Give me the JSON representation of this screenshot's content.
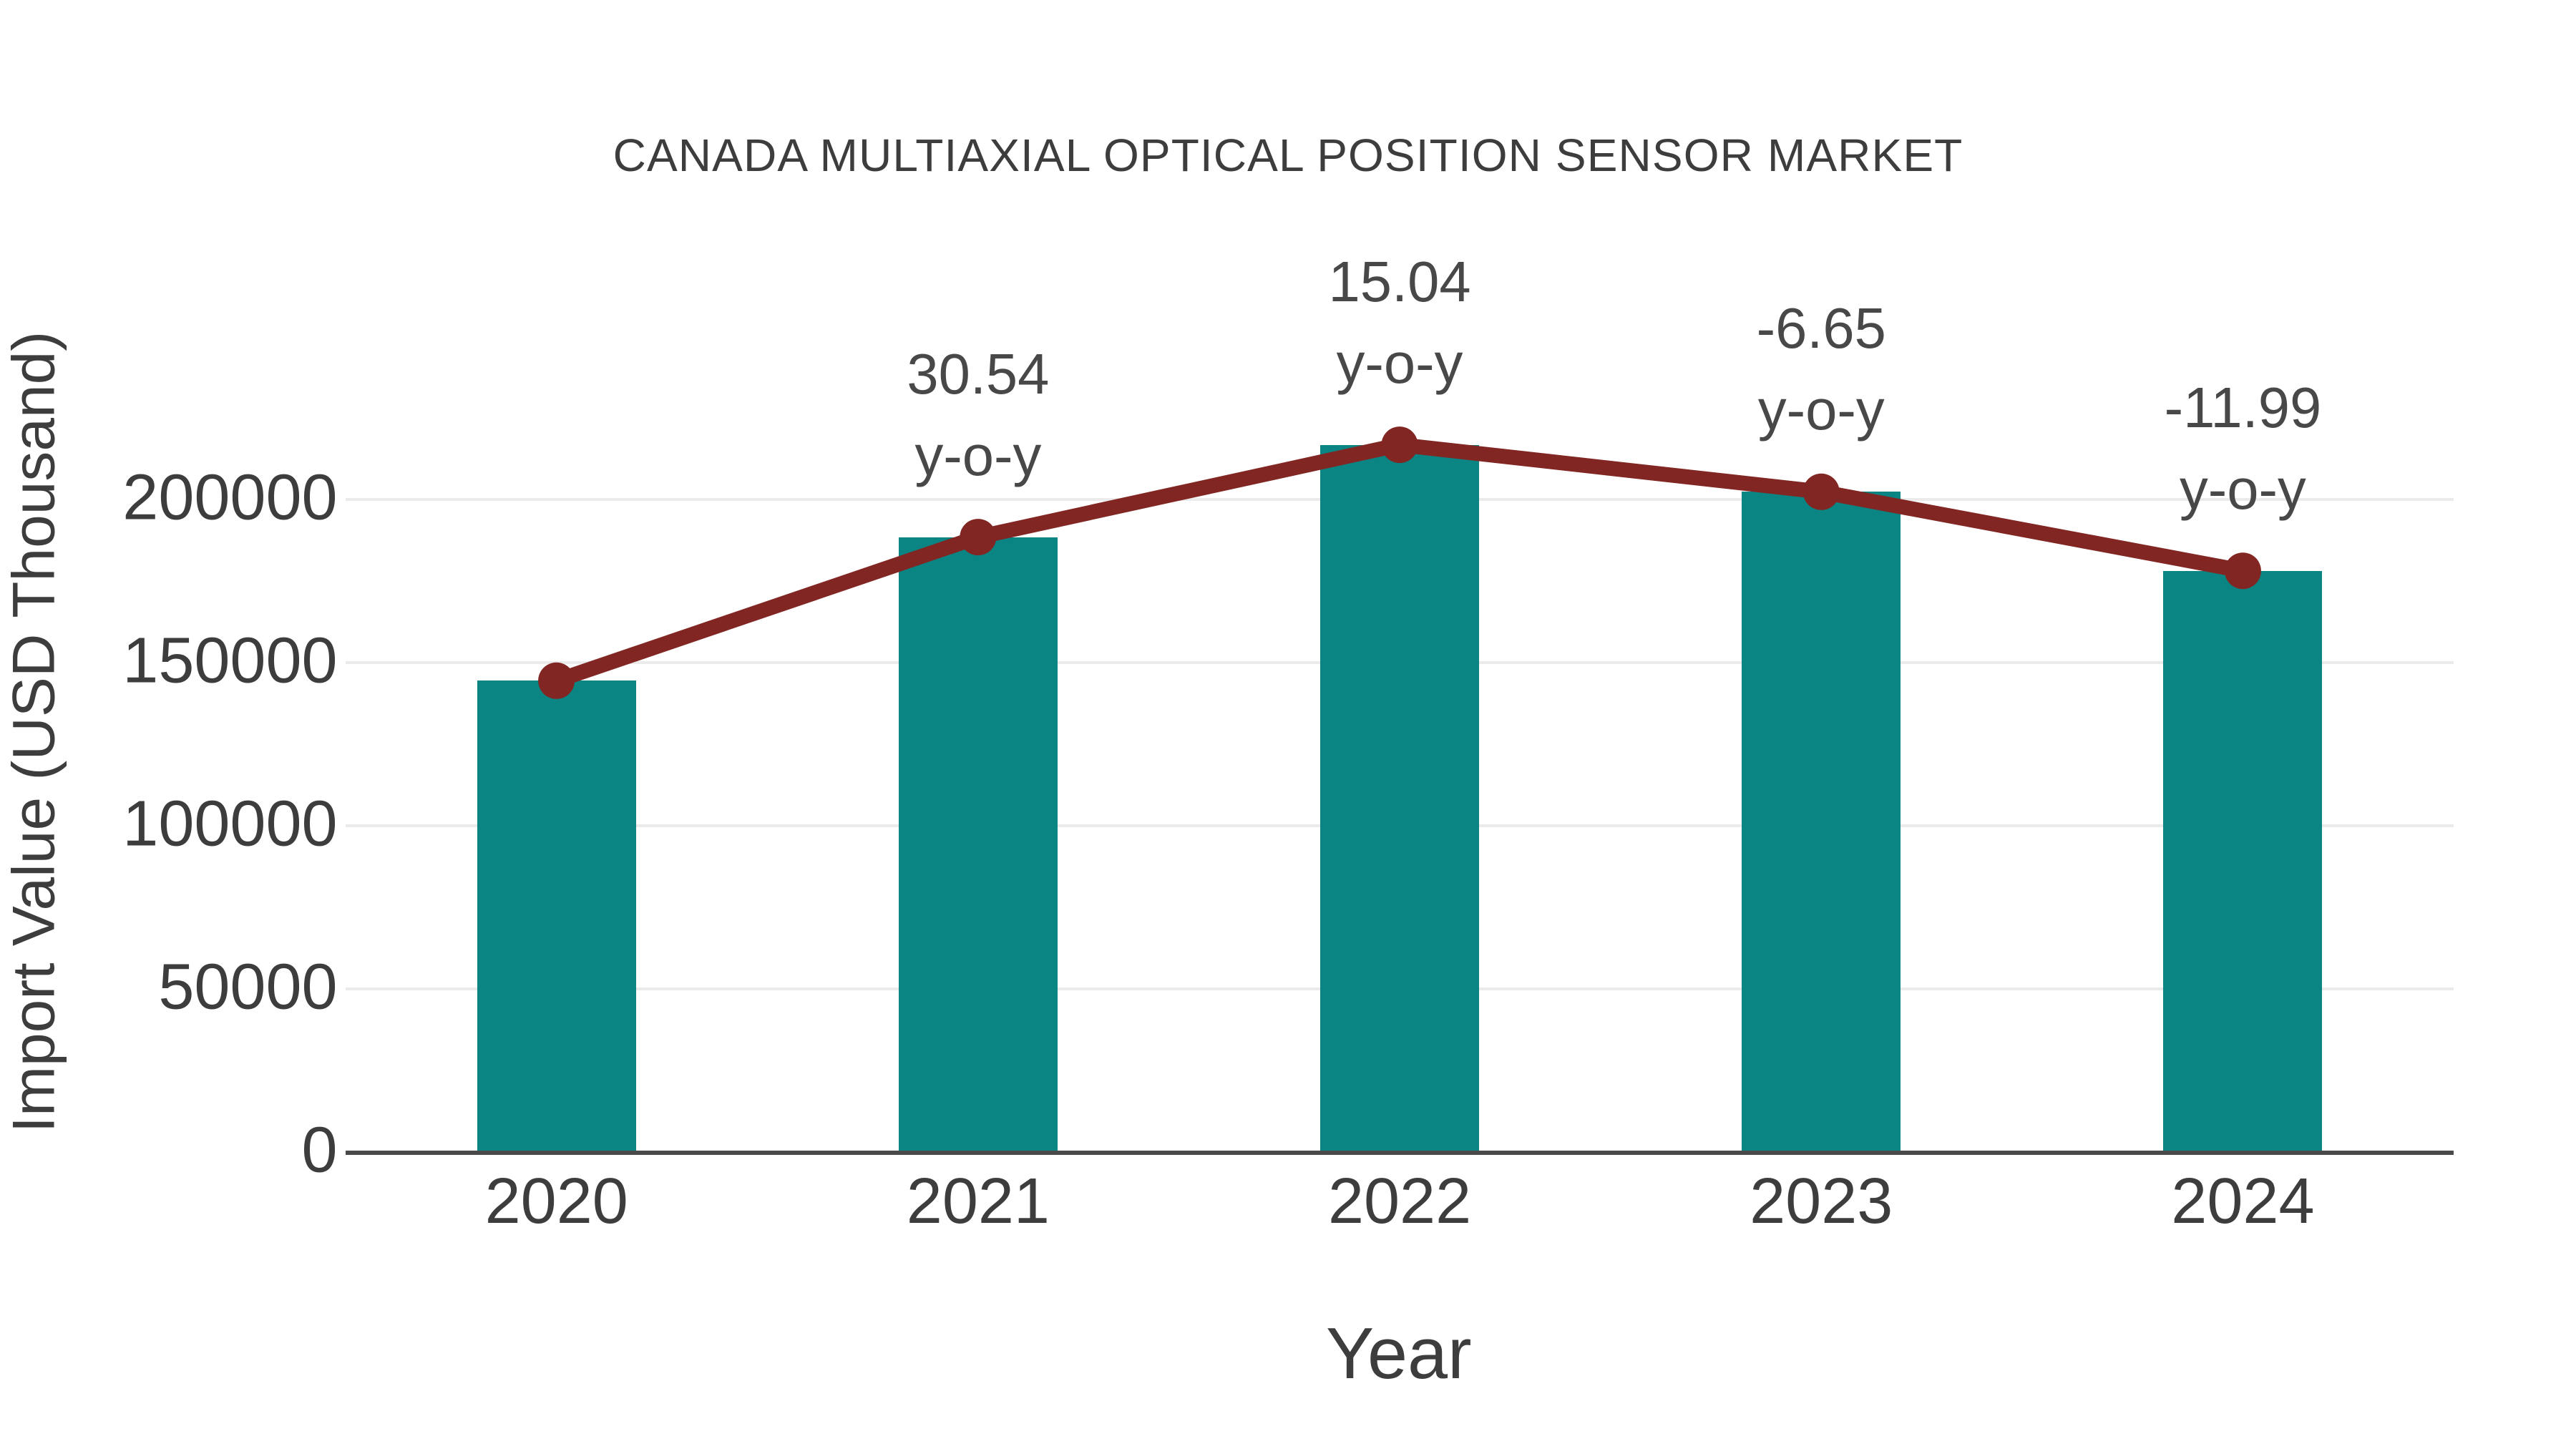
{
  "title": "CANADA MULTIAXIAL OPTICAL POSITION SENSOR MARKET",
  "chart_data": {
    "type": "bar",
    "title": "CANADA MULTIAXIAL OPTICAL POSITION SENSOR MARKET",
    "xlabel": "Year",
    "ylabel": "Import Value (USD Thousand)",
    "categories": [
      "2020",
      "2021",
      "2022",
      "2023",
      "2024"
    ],
    "series": [
      {
        "name": "Import Value",
        "type": "bar",
        "values": [
          144000,
          188000,
          216300,
          201900,
          177700
        ]
      },
      {
        "name": "Import Value trend",
        "type": "line",
        "values": [
          144000,
          188000,
          216300,
          201900,
          177700
        ]
      }
    ],
    "annotations": [
      {
        "category": "2021",
        "line1": "30.54",
        "line2": "y-o-y"
      },
      {
        "category": "2022",
        "line1": "15.04",
        "line2": "y-o-y"
      },
      {
        "category": "2023",
        "line1": "-6.65",
        "line2": "y-o-y"
      },
      {
        "category": "2024",
        "line1": "-11.99",
        "line2": "y-o-y"
      }
    ],
    "yoy_percent": [
      null,
      30.54,
      15.04,
      -6.65,
      -11.99
    ],
    "yticks": [
      "0",
      "50000",
      "100000",
      "150000",
      "200000"
    ],
    "ytick_values": [
      0,
      50000,
      100000,
      150000,
      200000
    ],
    "ylim": [
      0,
      250000
    ],
    "grid": "horizontal",
    "legend": "none"
  },
  "colors": {
    "bar": "#0b8583",
    "line": "#812622",
    "marker": "#812622",
    "grid": "#ebebeb",
    "axis": "#4a4a4a",
    "text": "#3d3d3d",
    "annotation": "#484848",
    "background": "#ffffff"
  }
}
